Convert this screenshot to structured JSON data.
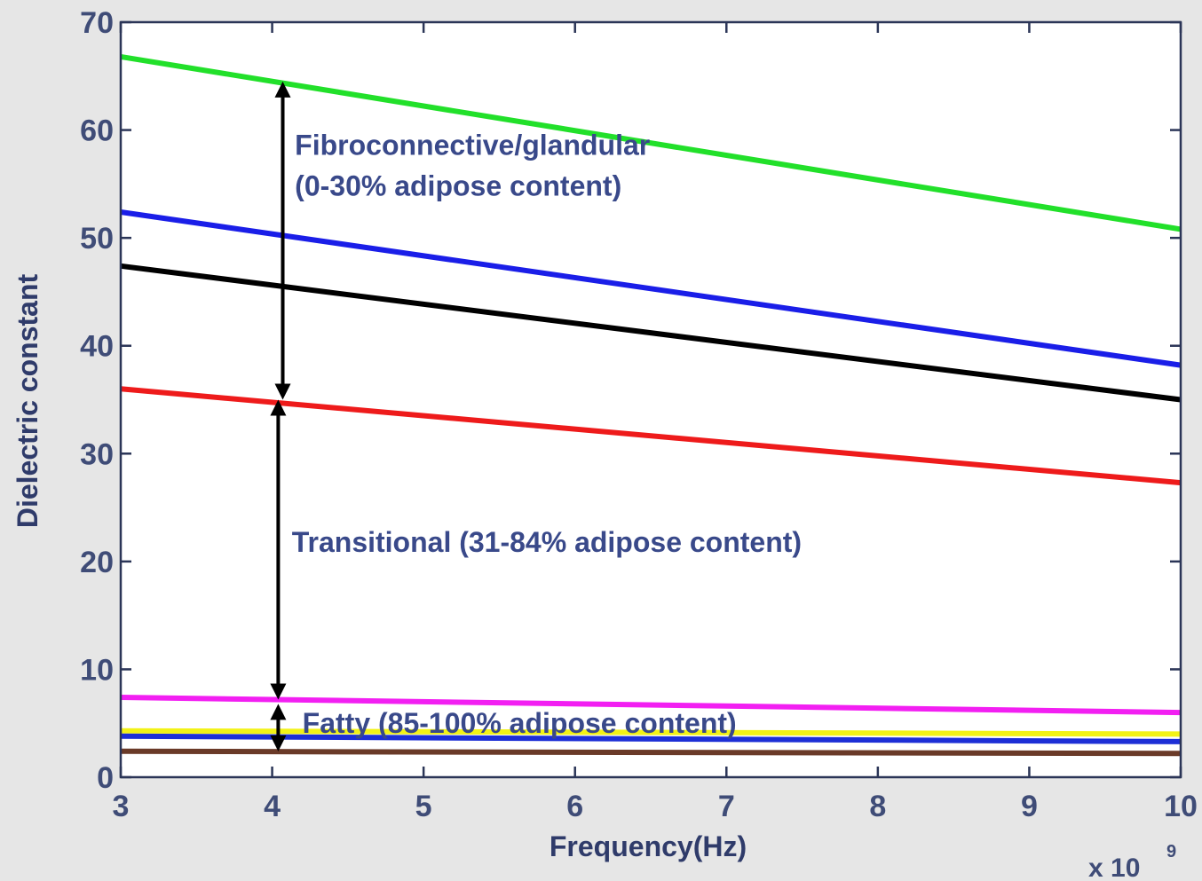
{
  "chart_data": {
    "type": "line",
    "xlabel": "Frequency(Hz)",
    "ylabel": "Dielectric constant",
    "x_multiplier_base": "x 10",
    "x_multiplier_exp": "9",
    "xlim": [
      3,
      10
    ],
    "ylim": [
      0,
      70
    ],
    "xticks": [
      3,
      4,
      5,
      6,
      7,
      8,
      9,
      10
    ],
    "yticks": [
      0,
      10,
      20,
      30,
      40,
      50,
      60,
      70
    ],
    "grid": false,
    "series": [
      {
        "color": "#22e02a",
        "x": [
          3,
          10
        ],
        "y": [
          66.8,
          50.8
        ]
      },
      {
        "color": "#1a1ee8",
        "x": [
          3,
          10
        ],
        "y": [
          52.4,
          38.2
        ]
      },
      {
        "color": "#000000",
        "x": [
          3,
          10
        ],
        "y": [
          47.4,
          35.0
        ]
      },
      {
        "color": "#ee1b1b",
        "x": [
          3,
          10
        ],
        "y": [
          36.0,
          27.3
        ]
      },
      {
        "color": "#f21ff2",
        "x": [
          3,
          10
        ],
        "y": [
          7.4,
          6.0
        ]
      },
      {
        "color": "#f2f216",
        "x": [
          3,
          10
        ],
        "y": [
          4.3,
          4.0
        ]
      },
      {
        "color": "#1d2fd6",
        "x": [
          3,
          10
        ],
        "y": [
          3.8,
          3.3
        ]
      },
      {
        "color": "#6a3a28",
        "x": [
          3,
          10
        ],
        "y": [
          2.4,
          2.2
        ]
      }
    ],
    "annotations": [
      {
        "text": "Fibroconnective/glandular",
        "x": 4.15,
        "y": 57.7
      },
      {
        "text": "(0-30% adipose content)",
        "x": 4.15,
        "y": 53.9
      },
      {
        "text": "Transitional (31-84% adipose content)",
        "x": 4.13,
        "y": 20.9
      },
      {
        "text": "Fatty (85-100% adipose content)",
        "x": 4.2,
        "y": 4.1
      }
    ],
    "arrows": [
      {
        "x": 4.07,
        "y_from": 64.5,
        "y_to": 35.0
      },
      {
        "x": 4.04,
        "y_from": 35.0,
        "y_to": 7.2
      },
      {
        "x": 4.04,
        "y_from": 6.8,
        "y_to": 2.4
      }
    ]
  }
}
